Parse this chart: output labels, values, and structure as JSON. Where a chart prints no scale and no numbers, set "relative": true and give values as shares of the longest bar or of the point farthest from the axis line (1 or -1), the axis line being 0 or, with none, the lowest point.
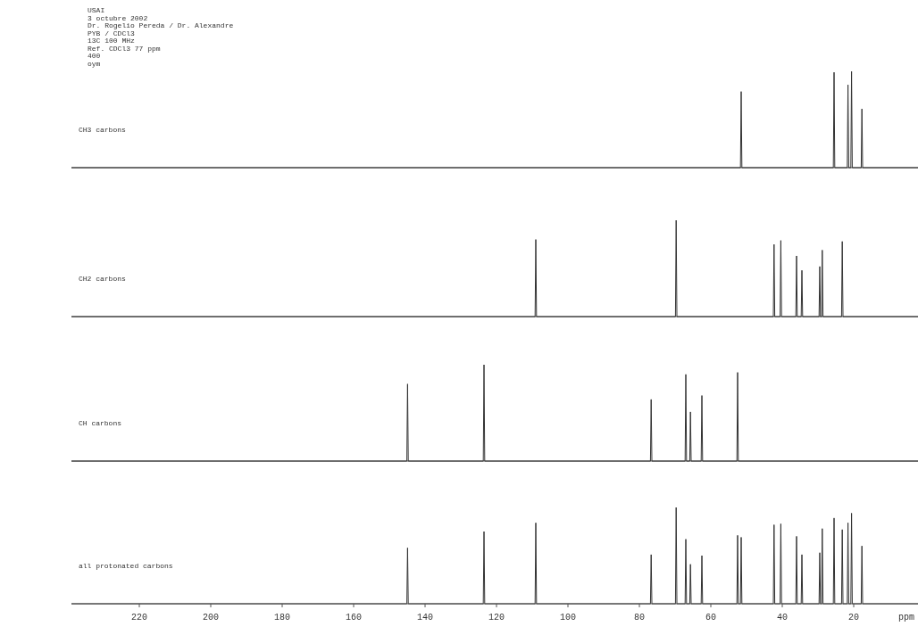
{
  "chart_data": [
    {
      "type": "line",
      "title": "CH3 carbons",
      "annotations": [
        "USAI",
        "3 octubre 2002",
        "Dr. Rogelio Pereda / Dr. Alexandre",
        "PYB / CDCl3",
        "13C 100 MHz",
        "Ref. CDCl3 77 ppm",
        "400",
        "oym"
      ],
      "relative": true,
      "xlim": [
        239,
        2
      ],
      "tick_labels": false,
      "color": "#333333",
      "x": [
        239,
        51.7,
        51.5,
        51.3,
        25.7,
        25.5,
        25.3,
        21.8,
        21.6,
        21.4,
        20.8,
        20.6,
        20.4,
        17.9,
        17.7,
        17.5,
        2
      ],
      "values": [
        0,
        0,
        0.79,
        0,
        0,
        0.99,
        0,
        0,
        0.86,
        0,
        0,
        1,
        0,
        0,
        0.61,
        0,
        0
      ]
    },
    {
      "type": "line",
      "title": "CH2 carbons",
      "relative": true,
      "xlim": [
        239,
        2
      ],
      "tick_labels": false,
      "color": "#333333",
      "x": [
        239,
        109.2,
        109,
        108.8,
        69.9,
        69.7,
        69.5,
        42.5,
        42.3,
        42.1,
        40.6,
        40.4,
        40.2,
        36.2,
        36,
        35.8,
        34.7,
        34.5,
        34.3,
        29.7,
        29.5,
        29.3,
        29,
        28.8,
        28.6,
        23.4,
        23.2,
        23,
        2
      ],
      "values": [
        0,
        0,
        0.8,
        0,
        0,
        1,
        0,
        0,
        0.75,
        0,
        0,
        0.79,
        0,
        0,
        0.63,
        0,
        0,
        0.48,
        0,
        0,
        0.52,
        0,
        0,
        0.69,
        0,
        0,
        0.78,
        0,
        0
      ]
    },
    {
      "type": "line",
      "title": "CH carbons",
      "relative": true,
      "xlim": [
        239,
        2
      ],
      "tick_labels": false,
      "color": "#333333",
      "x": [
        239,
        145.1,
        144.9,
        144.7,
        123.7,
        123.5,
        123.3,
        76.9,
        76.7,
        76.5,
        67.2,
        67,
        66.8,
        65.9,
        65.7,
        65.5,
        62.7,
        62.5,
        62.3,
        52.7,
        52.5,
        52.3,
        2
      ],
      "values": [
        0,
        0,
        0.8,
        0,
        0,
        1,
        0,
        0,
        0.64,
        0,
        0,
        0.9,
        0,
        0,
        0.51,
        0,
        0,
        0.68,
        0,
        0,
        0.92,
        0,
        0
      ]
    },
    {
      "type": "line",
      "title": "all protonated carbons",
      "relative": true,
      "xlim": [
        239,
        2
      ],
      "tick_labels": "x",
      "xlabel": "ppm",
      "xticks": [
        220,
        200,
        180,
        160,
        140,
        120,
        100,
        80,
        60,
        40,
        20
      ],
      "color": "#333333",
      "x": [
        239,
        145.1,
        144.9,
        144.7,
        123.7,
        123.5,
        123.3,
        109.2,
        109,
        108.8,
        76.9,
        76.7,
        76.5,
        69.9,
        69.7,
        69.5,
        67.2,
        67,
        66.8,
        65.9,
        65.7,
        65.5,
        62.7,
        62.5,
        62.3,
        52.7,
        52.5,
        52.3,
        51.7,
        51.5,
        51.3,
        42.5,
        42.3,
        42.1,
        40.6,
        40.4,
        40.2,
        36.2,
        36,
        35.8,
        34.7,
        34.5,
        34.3,
        29.7,
        29.5,
        29.3,
        29,
        28.8,
        28.6,
        25.7,
        25.5,
        25.3,
        23.4,
        23.2,
        23,
        21.8,
        21.6,
        21.4,
        20.8,
        20.6,
        20.4,
        17.9,
        17.7,
        17.5,
        2
      ],
      "values": [
        0,
        0,
        0.58,
        0,
        0,
        0.75,
        0,
        0,
        0.84,
        0,
        0,
        0.51,
        0,
        0,
        1,
        0,
        0,
        0.67,
        0,
        0,
        0.41,
        0,
        0,
        0.5,
        0,
        0,
        0.71,
        0,
        0,
        0.69,
        0,
        0,
        0.82,
        0,
        0,
        0.83,
        0,
        0,
        0.7,
        0,
        0,
        0.51,
        0,
        0,
        0.53,
        0,
        0,
        0.78,
        0,
        0,
        0.89,
        0,
        0,
        0.77,
        0,
        0,
        0.84,
        0,
        0,
        0.94,
        0,
        0,
        0.6,
        0,
        0
      ]
    }
  ]
}
